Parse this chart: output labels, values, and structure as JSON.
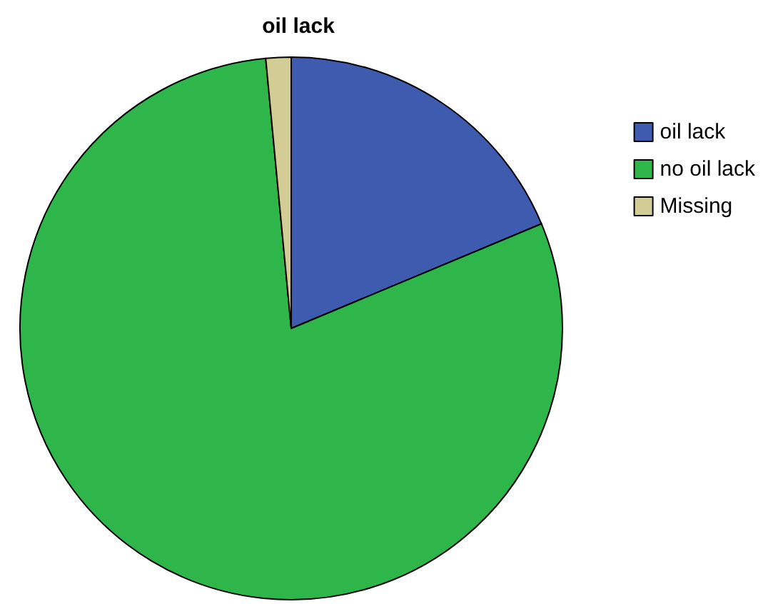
{
  "chart_data": {
    "type": "pie",
    "title": "oil lack",
    "categories": [
      "oil lack",
      "no oil lack",
      "Missing"
    ],
    "values": [
      18.7,
      79.8,
      1.5
    ],
    "colors": [
      "#3f5bb0",
      "#2fb64a",
      "#d3cc95"
    ],
    "legend": "top right"
  }
}
